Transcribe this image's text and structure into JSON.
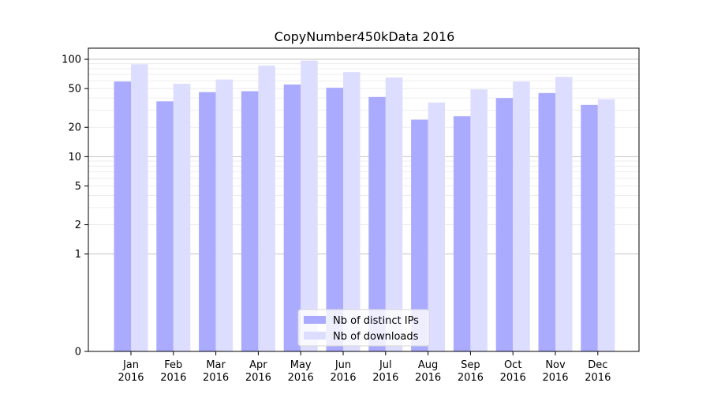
{
  "chart_data": {
    "type": "bar",
    "title": "CopyNumber450kData 2016",
    "xlabel": "",
    "ylabel": "",
    "yscale": "symlog",
    "ylim": [
      0,
      130
    ],
    "yticks": [
      0,
      1,
      2,
      5,
      10,
      20,
      50,
      100
    ],
    "ytick_labels": [
      "0",
      "1",
      "2",
      "5",
      "10",
      "20",
      "50",
      "100"
    ],
    "categories": [
      "Jan\n2016",
      "Feb\n2016",
      "Mar\n2016",
      "Apr\n2016",
      "May\n2016",
      "Jun\n2016",
      "Jul\n2016",
      "Aug\n2016",
      "Sep\n2016",
      "Oct\n2016",
      "Nov\n2016",
      "Dec\n2016"
    ],
    "series": [
      {
        "name": "Nb of distinct IPs",
        "color": "#aaaaff",
        "values": [
          59,
          37,
          46,
          47,
          55,
          51,
          41,
          24,
          26,
          40,
          45,
          34
        ]
      },
      {
        "name": "Nb of downloads",
        "color": "#ddddff",
        "values": [
          89,
          56,
          62,
          86,
          97,
          74,
          65,
          36,
          49,
          59,
          66,
          39
        ]
      }
    ],
    "grid": true,
    "legend": "lower-center"
  }
}
